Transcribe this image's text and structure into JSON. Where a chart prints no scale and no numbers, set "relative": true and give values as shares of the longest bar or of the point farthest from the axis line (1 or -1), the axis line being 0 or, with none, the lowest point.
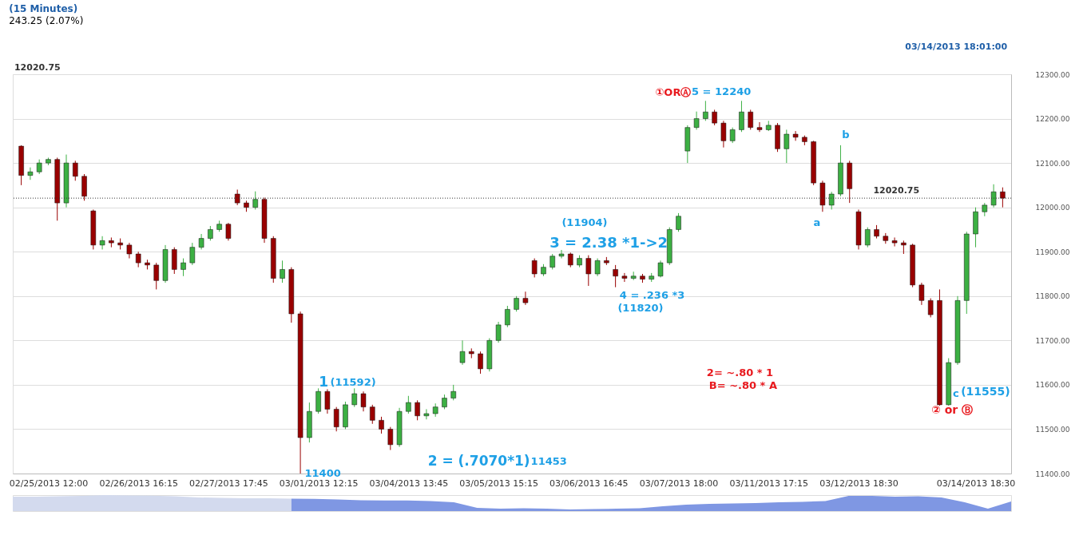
{
  "chart_data": [
    {
      "type": "candlestick",
      "title": "(15 Minutes)",
      "subtitle": "243.25 (2.07%)",
      "categories": [
        null,
        null,
        null,
        "02/25/2013 12:00",
        null,
        null,
        null,
        null,
        null,
        null,
        null,
        null,
        null,
        "02/26/2013 16:15",
        null,
        null,
        null,
        null,
        null,
        null,
        null,
        null,
        null,
        "02/27/2013 17:45",
        null,
        null,
        null,
        null,
        null,
        null,
        null,
        null,
        null,
        "03/01/2013 12:15",
        null,
        null,
        null,
        null,
        null,
        null,
        null,
        null,
        null,
        "03/04/2013 13:45",
        null,
        null,
        null,
        null,
        null,
        null,
        null,
        null,
        null,
        "03/05/2013 15:15",
        null,
        null,
        null,
        null,
        null,
        null,
        null,
        null,
        null,
        "03/06/2013 16:45",
        null,
        null,
        null,
        null,
        null,
        null,
        null,
        null,
        null,
        "03/07/2013 18:00",
        null,
        null,
        null,
        null,
        null,
        null,
        null,
        null,
        null,
        "03/11/2013 17:15",
        null,
        null,
        null,
        null,
        null,
        null,
        null,
        null,
        null,
        "03/12/2013 18:30",
        null,
        null,
        null,
        null,
        null,
        null,
        null,
        null,
        null,
        null,
        null,
        null,
        "03/14/2013 18:30",
        null,
        null,
        null
      ],
      "ohlc": [
        [
          12138,
          12140,
          12050,
          12072
        ],
        [
          12072,
          12090,
          12062,
          12080
        ],
        [
          12080,
          12108,
          12075,
          12100
        ],
        [
          12100,
          12112,
          12095,
          12108
        ],
        [
          12108,
          12112,
          11970,
          12010
        ],
        [
          12010,
          12119,
          12000,
          12100
        ],
        [
          12100,
          12105,
          12060,
          12070
        ],
        [
          12070,
          12075,
          12015,
          12025
        ],
        [
          11992,
          11995,
          11905,
          11915
        ],
        [
          11915,
          11935,
          11905,
          11925
        ],
        [
          11925,
          11932,
          11910,
          11920
        ],
        [
          11920,
          11930,
          11905,
          11915
        ],
        [
          11915,
          11920,
          11885,
          11895
        ],
        [
          11895,
          11900,
          11865,
          11875
        ],
        [
          11875,
          11882,
          11860,
          11870
        ],
        [
          11870,
          11875,
          11815,
          11835
        ],
        [
          11835,
          11915,
          11830,
          11905
        ],
        [
          11905,
          11910,
          11850,
          11860
        ],
        [
          11860,
          11885,
          11845,
          11875
        ],
        [
          11875,
          11920,
          11870,
          11910
        ],
        [
          11910,
          11940,
          11905,
          11930
        ],
        [
          11930,
          11958,
          11925,
          11950
        ],
        [
          11950,
          11970,
          11945,
          11962
        ],
        [
          11962,
          11965,
          11925,
          11930
        ],
        [
          12030,
          12040,
          12005,
          12010
        ],
        [
          12010,
          12015,
          11990,
          12000
        ],
        [
          12000,
          12036,
          11995,
          12018
        ],
        [
          12018,
          12022,
          11920,
          11930
        ],
        [
          11930,
          11935,
          11830,
          11840
        ],
        [
          11840,
          11880,
          11830,
          11860
        ],
        [
          11860,
          11865,
          11740,
          11760
        ],
        [
          11760,
          11765,
          11400,
          11481
        ],
        [
          11481,
          11560,
          11470,
          11540
        ],
        [
          11540,
          11592,
          11535,
          11585
        ],
        [
          11585,
          11590,
          11535,
          11545
        ],
        [
          11545,
          11550,
          11495,
          11505
        ],
        [
          11505,
          11562,
          11500,
          11555
        ],
        [
          11555,
          11592,
          11550,
          11580
        ],
        [
          11580,
          11585,
          11540,
          11550
        ],
        [
          11550,
          11555,
          11512,
          11520
        ],
        [
          11520,
          11528,
          11490,
          11500
        ],
        [
          11500,
          11505,
          11453,
          11465
        ],
        [
          11465,
          11548,
          11460,
          11540
        ],
        [
          11540,
          11575,
          11535,
          11560
        ],
        [
          11560,
          11565,
          11520,
          11530
        ],
        [
          11530,
          11545,
          11522,
          11535
        ],
        [
          11535,
          11558,
          11528,
          11550
        ],
        [
          11550,
          11578,
          11545,
          11570
        ],
        [
          11570,
          11600,
          11565,
          11585
        ],
        [
          11650,
          11700,
          11645,
          11675
        ],
        [
          11675,
          11682,
          11660,
          11670
        ],
        [
          11670,
          11675,
          11625,
          11636
        ],
        [
          11636,
          11705,
          11630,
          11700
        ],
        [
          11700,
          11742,
          11695,
          11735
        ],
        [
          11735,
          11778,
          11730,
          11770
        ],
        [
          11770,
          11800,
          11765,
          11795
        ],
        [
          11795,
          11810,
          11780,
          11785
        ],
        [
          11880,
          11885,
          11842,
          11850
        ],
        [
          11850,
          11872,
          11845,
          11865
        ],
        [
          11865,
          11895,
          11860,
          11890
        ],
        [
          11890,
          11904,
          11885,
          11895
        ],
        [
          11895,
          11898,
          11865,
          11870
        ],
        [
          11870,
          11892,
          11865,
          11885
        ],
        [
          11885,
          11892,
          11823,
          11850
        ],
        [
          11850,
          11885,
          11845,
          11880
        ],
        [
          11880,
          11888,
          11870,
          11875
        ],
        [
          11860,
          11870,
          11820,
          11845
        ],
        [
          11845,
          11852,
          11832,
          11840
        ],
        [
          11840,
          11855,
          11836,
          11845
        ],
        [
          11845,
          11850,
          11830,
          11838
        ],
        [
          11838,
          11852,
          11832,
          11845
        ],
        [
          11845,
          11880,
          11842,
          11875
        ],
        [
          11875,
          11955,
          11870,
          11950
        ],
        [
          11950,
          11987,
          11945,
          11980
        ],
        [
          12127,
          12185,
          12100,
          12180
        ],
        [
          12180,
          12216,
          12175,
          12200
        ],
        [
          12200,
          12240,
          12195,
          12215
        ],
        [
          12215,
          12220,
          12185,
          12190
        ],
        [
          12190,
          12195,
          12135,
          12150
        ],
        [
          12150,
          12180,
          12145,
          12175
        ],
        [
          12175,
          12240,
          12170,
          12215
        ],
        [
          12215,
          12220,
          12175,
          12180
        ],
        [
          12180,
          12192,
          12170,
          12175
        ],
        [
          12175,
          12195,
          12172,
          12185
        ],
        [
          12185,
          12190,
          12125,
          12132
        ],
        [
          12132,
          12175,
          12100,
          12165
        ],
        [
          12165,
          12172,
          12150,
          12158
        ],
        [
          12158,
          12162,
          12140,
          12148
        ],
        [
          12148,
          12150,
          12050,
          12055
        ],
        [
          12055,
          12060,
          11990,
          12005
        ],
        [
          12005,
          12035,
          11995,
          12030
        ],
        [
          12030,
          12140,
          12025,
          12100
        ],
        [
          12100,
          12105,
          12010,
          12042
        ],
        [
          11990,
          11995,
          11905,
          11915
        ],
        [
          11915,
          11955,
          11910,
          11950
        ],
        [
          11950,
          11960,
          11930,
          11935
        ],
        [
          11935,
          11942,
          11918,
          11925
        ],
        [
          11925,
          11932,
          11912,
          11920
        ],
        [
          11920,
          11925,
          11895,
          11915
        ],
        [
          11915,
          11918,
          11820,
          11825
        ],
        [
          11825,
          11830,
          11780,
          11790
        ],
        [
          11790,
          11795,
          11752,
          11758
        ],
        [
          11790,
          11815,
          11553,
          11555
        ],
        [
          11555,
          11660,
          11553,
          11650
        ],
        [
          11650,
          11800,
          11645,
          11790
        ],
        [
          11790,
          11945,
          11760,
          11940
        ],
        [
          11940,
          12000,
          11910,
          11990
        ],
        [
          11990,
          12010,
          11980,
          12005
        ],
        [
          12005,
          12052,
          12000,
          12035
        ],
        [
          12035,
          12045,
          12000,
          12020.75
        ]
      ],
      "colors": [
        "#990000",
        "#3cb043",
        "#3cb043",
        "#3cb043",
        "#990000",
        "#3cb043",
        "#990000",
        "#990000",
        "#990000",
        "#3cb043",
        "#990000",
        "#990000",
        "#990000",
        "#990000",
        "#990000",
        "#990000",
        "#3cb043",
        "#990000",
        "#3cb043",
        "#3cb043",
        "#3cb043",
        "#3cb043",
        "#3cb043",
        "#990000",
        "#990000",
        "#990000",
        "#3cb043",
        "#990000",
        "#990000",
        "#3cb043",
        "#990000",
        "#990000",
        "#3cb043",
        "#3cb043",
        "#990000",
        "#990000",
        "#3cb043",
        "#3cb043",
        "#990000",
        "#990000",
        "#990000",
        "#990000",
        "#3cb043",
        "#3cb043",
        "#990000",
        "#3cb043",
        "#3cb043",
        "#3cb043",
        "#3cb043",
        "#3cb043",
        "#990000",
        "#990000",
        "#3cb043",
        "#3cb043",
        "#3cb043",
        "#3cb043",
        "#990000",
        "#990000",
        "#3cb043",
        "#3cb043",
        "#3cb043",
        "#990000",
        "#3cb043",
        "#990000",
        "#3cb043",
        "#990000",
        "#990000",
        "#990000",
        "#3cb043",
        "#990000",
        "#3cb043",
        "#3cb043",
        "#3cb043",
        "#3cb043",
        "#3cb043",
        "#3cb043",
        "#3cb043",
        "#990000",
        "#990000",
        "#3cb043",
        "#3cb043",
        "#990000",
        "#990000",
        "#3cb043",
        "#990000",
        "#3cb043",
        "#990000",
        "#990000",
        "#990000",
        "#990000",
        "#3cb043",
        "#3cb043",
        "#990000",
        "#990000",
        "#3cb043",
        "#990000",
        "#990000",
        "#990000",
        "#990000",
        "#990000",
        "#990000",
        "#990000",
        "#990000",
        "#3cb043",
        "#3cb043",
        "#3cb043",
        "#3cb043",
        "#3cb043",
        "#3cb043",
        "#990000"
      ],
      "ylim": [
        11400,
        12300
      ],
      "yticks": [
        {
          "value": 11400,
          "label": "11400.00"
        },
        {
          "value": 11500,
          "label": "11500.00"
        },
        {
          "value": 11600,
          "label": "11600.00"
        },
        {
          "value": 11700,
          "label": "11700.00"
        },
        {
          "value": 11800,
          "label": "11800.00"
        },
        {
          "value": 11900,
          "label": "11900.00"
        },
        {
          "value": 12000,
          "label": "12000.00"
        },
        {
          "value": 12100,
          "label": "12100.00"
        },
        {
          "value": 12200,
          "label": "12200.00"
        },
        {
          "value": 12300,
          "label": "12300.00"
        }
      ],
      "grid": "y",
      "ref_lines": [
        {
          "axis": "y",
          "value": 12020.75,
          "label": "12020.75",
          "color": "#333333",
          "line_style": "dotted"
        }
      ],
      "annotations": [
        "12020.75",
        "03/14/2013 18:01:00",
        "1",
        "(11592)",
        "2 = (.7070*1)",
        "11453",
        "11400",
        "(11904)",
        "3 = 2.38 *1->2",
        "4 = .236 *3",
        "(11820)",
        "①ORⒶ",
        "5 = 12240",
        "b",
        "a",
        "2= ~.80 * 1",
        "B= ~.80 * A",
        "c",
        "(11555)",
        "② or Ⓑ"
      ]
    },
    {
      "type": "area",
      "relative": true,
      "categories": [
        null,
        null,
        null,
        null,
        null,
        null,
        null,
        null,
        null,
        null,
        null,
        null,
        null,
        null,
        null,
        null,
        null,
        null,
        null,
        null,
        null,
        null,
        null,
        null,
        null,
        null,
        null,
        null,
        null,
        null,
        null,
        null,
        null,
        null,
        null,
        null,
        null,
        null,
        null,
        null,
        null,
        null,
        null,
        null
      ],
      "series": [
        {
          "color": "#d3daee",
          "values": [
            0.9,
            0.9,
            0.92,
            0.95,
            1,
            0.98,
            0.96,
            0.93,
            0.85,
            0.82,
            0.8,
            0.8,
            0.78,
            null,
            null,
            null,
            null,
            null,
            null,
            null,
            null,
            null,
            null,
            null,
            null,
            null,
            null,
            null,
            null,
            null,
            null,
            null,
            null,
            null,
            null,
            null,
            null,
            null,
            null,
            null,
            null,
            null,
            null,
            null
          ]
        },
        {
          "color": "#7f97e3",
          "values": [
            null,
            null,
            null,
            null,
            null,
            null,
            null,
            null,
            null,
            null,
            null,
            null,
            0.78,
            0.76,
            0.72,
            0.68,
            0.66,
            0.66,
            0.62,
            0.55,
            0.2,
            0.15,
            0.18,
            0.15,
            0.1,
            0.12,
            0.15,
            0.18,
            0.3,
            0.4,
            0.45,
            0.48,
            0.5,
            0.55,
            0.58,
            0.62,
            0.95,
            0.95,
            0.9,
            0.92,
            0.85,
            0.55,
            0.15,
            0.6
          ]
        }
      ]
    }
  ]
}
